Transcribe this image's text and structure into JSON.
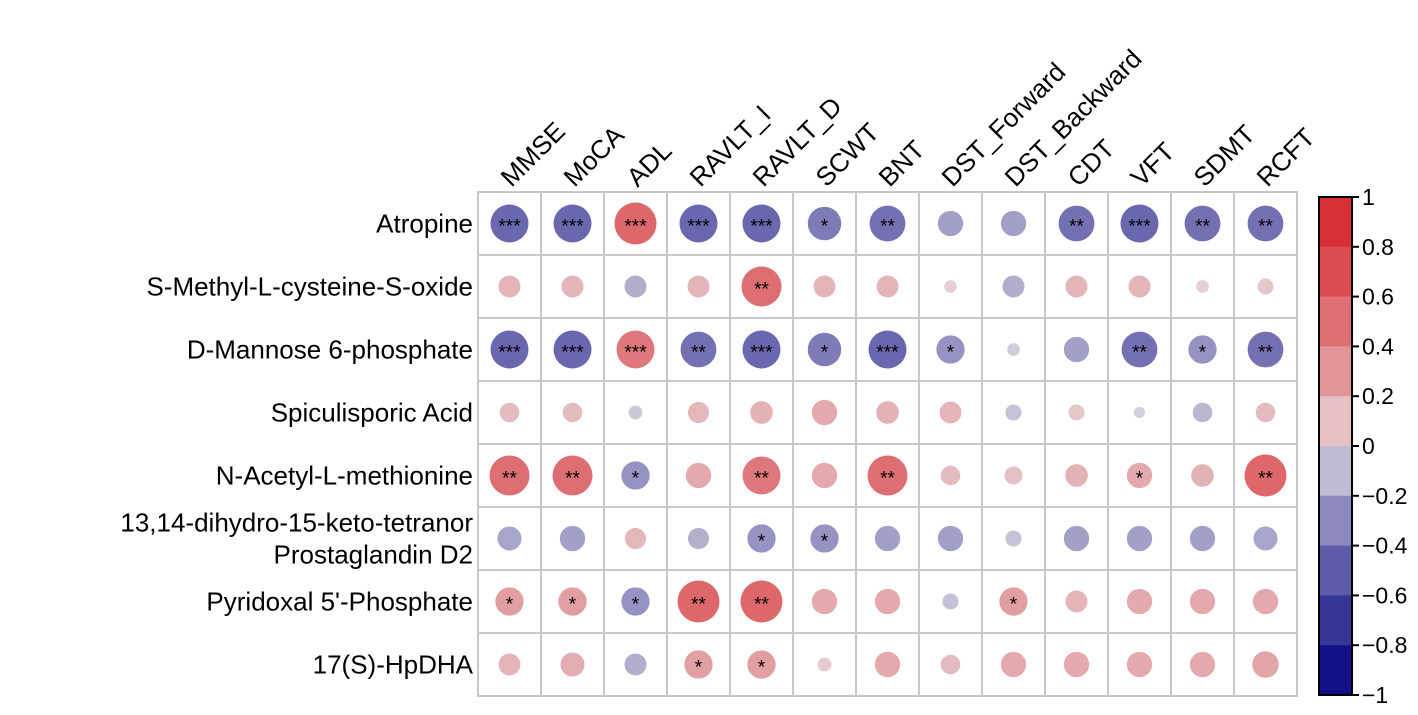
{
  "chart_data": {
    "type": "correlation-heatmap",
    "columns": [
      "MMSE",
      "MoCA",
      "ADL",
      "RAVLT_I",
      "RAVLT_D",
      "SCWT",
      "BNT",
      "DST_Forward",
      "DST_Backward",
      "CDT",
      "VFT",
      "SDMT",
      "RCFT"
    ],
    "rows": [
      {
        "label": [
          "Atropine"
        ],
        "values": [
          -0.45,
          -0.45,
          0.55,
          -0.45,
          -0.45,
          -0.35,
          -0.4,
          -0.2,
          -0.2,
          -0.4,
          -0.45,
          -0.4,
          -0.4
        ],
        "sig": [
          "***",
          "***",
          "***",
          "***",
          "***",
          "*",
          "**",
          "",
          "",
          "**",
          "***",
          "**",
          "**"
        ]
      },
      {
        "label": [
          "S-Methyl-L-cysteine-S-oxide"
        ],
        "values": [
          0.15,
          0.15,
          -0.15,
          0.15,
          0.5,
          0.15,
          0.15,
          0.05,
          -0.15,
          0.15,
          0.15,
          0.05,
          0.08
        ],
        "sig": [
          "",
          "",
          "",
          "",
          "**",
          "",
          "",
          "",
          "",
          "",
          "",
          "",
          ""
        ]
      },
      {
        "label": [
          "D-Mannose 6-phosphate"
        ],
        "values": [
          -0.45,
          -0.45,
          0.45,
          -0.4,
          -0.45,
          -0.35,
          -0.45,
          -0.25,
          -0.05,
          -0.2,
          -0.4,
          -0.25,
          -0.4
        ],
        "sig": [
          "***",
          "***",
          "***",
          "**",
          "***",
          "*",
          "***",
          "*",
          "",
          "",
          "**",
          "*",
          "**"
        ]
      },
      {
        "label": [
          "Spiculisporic Acid"
        ],
        "values": [
          0.12,
          0.12,
          -0.06,
          0.14,
          0.16,
          0.2,
          0.16,
          0.15,
          -0.08,
          0.08,
          -0.04,
          -0.12,
          0.12
        ],
        "sig": [
          "",
          "",
          "",
          "",
          "",
          "",
          "",
          "",
          "",
          "",
          "",
          "",
          ""
        ]
      },
      {
        "label": [
          "N-Acetyl-L-methionine"
        ],
        "values": [
          0.5,
          0.5,
          -0.25,
          0.2,
          0.45,
          0.2,
          0.5,
          0.12,
          0.1,
          0.16,
          0.2,
          0.16,
          0.55
        ],
        "sig": [
          "**",
          "**",
          "*",
          "",
          "**",
          "",
          "**",
          "",
          "",
          "",
          "*",
          "",
          "**"
        ]
      },
      {
        "label": [
          "13,14-dihydro-15-keto-tetranor",
          "Prostaglandin D2"
        ],
        "values": [
          -0.18,
          -0.2,
          0.14,
          -0.14,
          -0.25,
          -0.25,
          -0.2,
          -0.2,
          -0.08,
          -0.2,
          -0.2,
          -0.2,
          -0.18
        ],
        "sig": [
          "",
          "",
          "",
          "",
          "*",
          "*",
          "",
          "",
          "",
          "",
          "",
          "",
          ""
        ]
      },
      {
        "label": [
          "Pyridoxal 5'-Phosphate"
        ],
        "values": [
          0.25,
          0.25,
          -0.25,
          0.55,
          0.55,
          0.2,
          0.2,
          -0.08,
          0.25,
          0.15,
          0.2,
          0.2,
          0.2
        ],
        "sig": [
          "*",
          "*",
          "*",
          "**",
          "**",
          "",
          "",
          "",
          "*",
          "",
          "",
          "",
          ""
        ]
      },
      {
        "label": [
          "17(S)-HpDHA"
        ],
        "values": [
          0.15,
          0.18,
          -0.15,
          0.25,
          0.25,
          0.06,
          0.2,
          0.12,
          0.2,
          0.2,
          0.2,
          0.2,
          0.22
        ],
        "sig": [
          "",
          "",
          "",
          "*",
          "*",
          "",
          "",
          "",
          "",
          "",
          "",
          "",
          ""
        ]
      }
    ],
    "colorbar": {
      "range": [
        -1,
        1
      ],
      "ticks": [
        "1",
        "0.8",
        "0.6",
        "0.4",
        "0.2",
        "0",
        "−0.2",
        "−0.4",
        "−0.6",
        "−0.8",
        "−1"
      ]
    },
    "palette": {
      "negative": "#00007F",
      "neutral": "#E8E4E6",
      "positive": "#D62026"
    }
  }
}
